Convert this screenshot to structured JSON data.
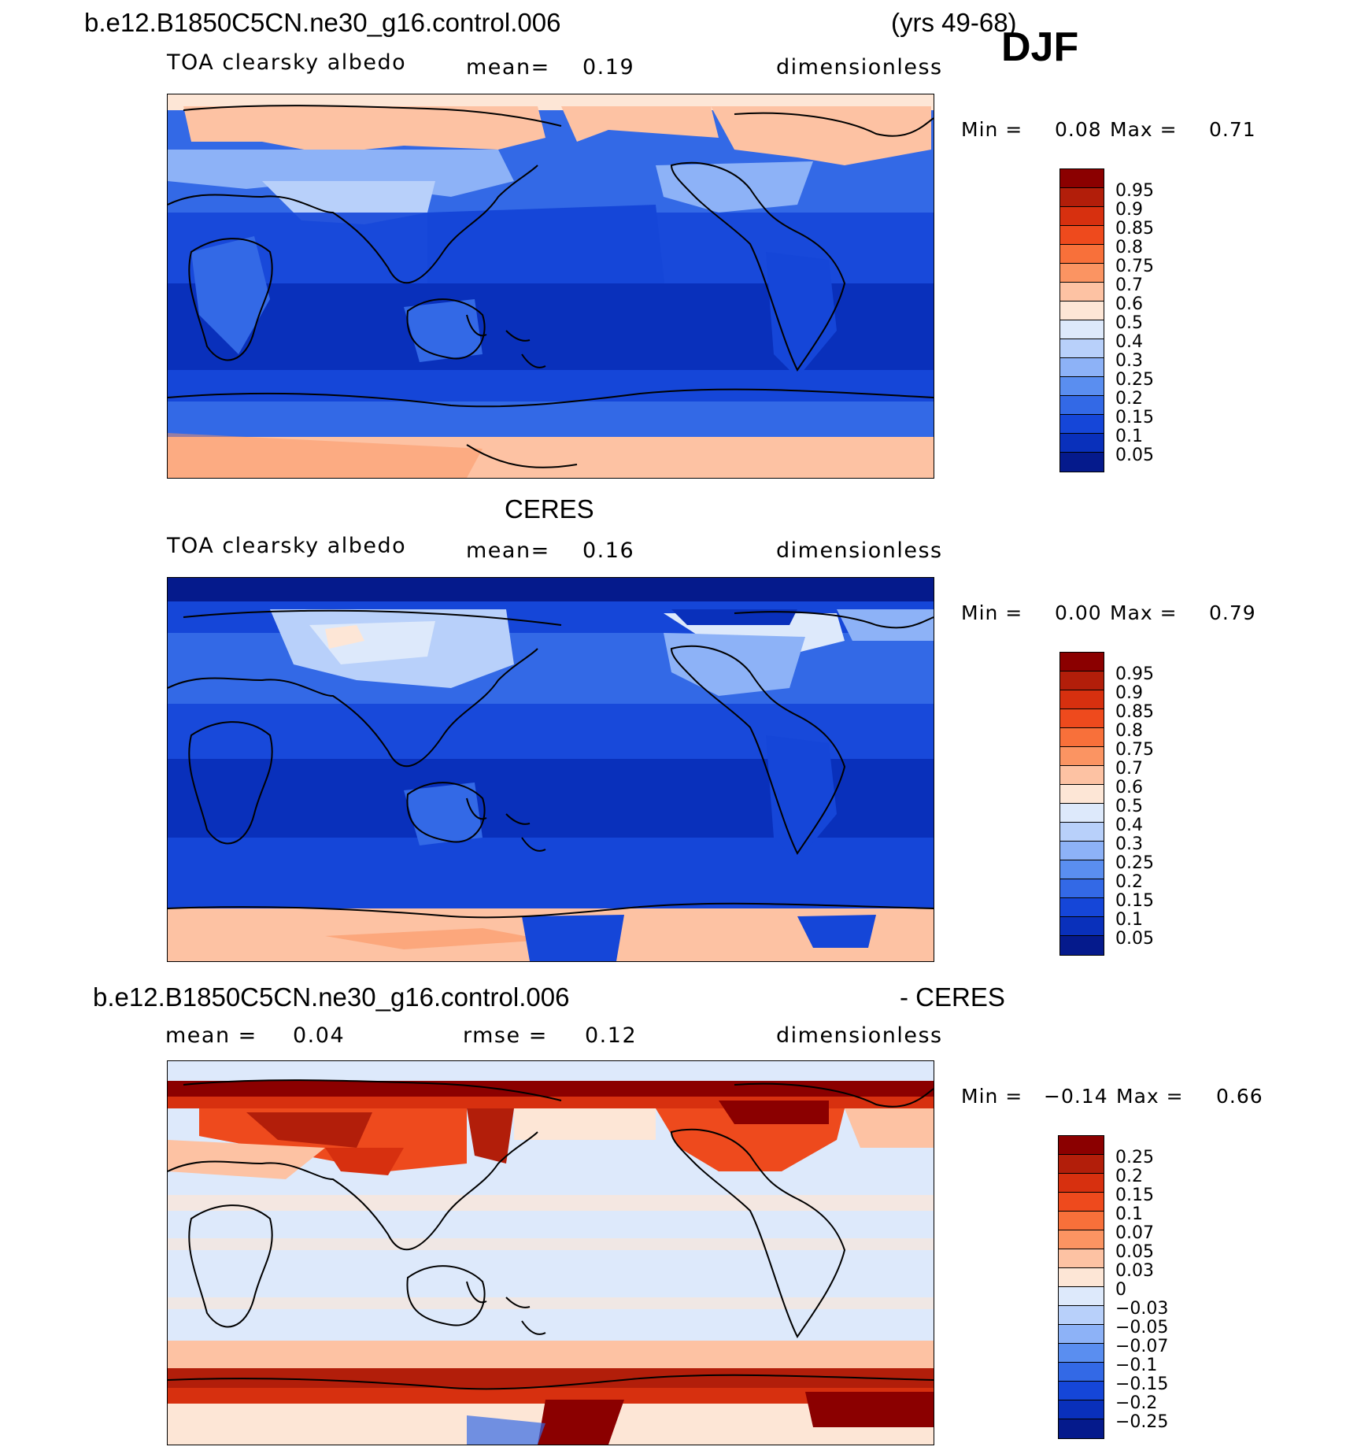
{
  "header": {
    "case_name": "b.e12.B1850C5CN.ne30_g16.control.006",
    "years": "(yrs 49-68)",
    "season": "DJF"
  },
  "panels": [
    {
      "title": "",
      "variable": "TOA clearsky albedo",
      "mean_label": "mean=",
      "mean_value": "0.19",
      "units": "dimensionless",
      "min_label": "Min =",
      "min_value": "0.08",
      "max_label": "Max =",
      "max_value": "0.71",
      "colorbar": {
        "labels": [
          "0.95",
          "0.9",
          "0.85",
          "0.8",
          "0.75",
          "0.7",
          "0.6",
          "0.5",
          "0.4",
          "0.3",
          "0.25",
          "0.2",
          "0.15",
          "0.1",
          "0.05"
        ],
        "colors": [
          "#8b0000",
          "#b21e0a",
          "#d7300f",
          "#ee4a1d",
          "#f8703a",
          "#fb9462",
          "#fdc2a3",
          "#fde6d6",
          "#dde9fb",
          "#b8d0fa",
          "#8db2f7",
          "#5a8ef0",
          "#3369e6",
          "#1546d8",
          "#0930bb",
          "#051a8c"
        ]
      }
    },
    {
      "title": "CERES",
      "variable": "TOA clearsky albedo",
      "mean_label": "mean=",
      "mean_value": "0.16",
      "units": "dimensionless",
      "min_label": "Min =",
      "min_value": "0.00",
      "max_label": "Max =",
      "max_value": "0.79",
      "colorbar": {
        "labels": [
          "0.95",
          "0.9",
          "0.85",
          "0.8",
          "0.75",
          "0.7",
          "0.6",
          "0.5",
          "0.4",
          "0.3",
          "0.25",
          "0.2",
          "0.15",
          "0.1",
          "0.05"
        ],
        "colors": [
          "#8b0000",
          "#b21e0a",
          "#d7300f",
          "#ee4a1d",
          "#f8703a",
          "#fb9462",
          "#fdc2a3",
          "#fde6d6",
          "#dde9fb",
          "#b8d0fa",
          "#8db2f7",
          "#5a8ef0",
          "#3369e6",
          "#1546d8",
          "#0930bb",
          "#051a8c"
        ]
      }
    },
    {
      "title_left": "b.e12.B1850C5CN.ne30_g16.control.006",
      "title_right": "- CERES",
      "mean_label": "mean =",
      "mean_value": "0.04",
      "rmse_label": "rmse =",
      "rmse_value": "0.12",
      "units": "dimensionless",
      "min_label": "Min =",
      "min_value": "−0.14",
      "max_label": "Max =",
      "max_value": "0.66",
      "colorbar": {
        "labels": [
          "0.25",
          "0.2",
          "0.15",
          "0.1",
          "0.07",
          "0.05",
          "0.03",
          "0",
          "−0.03",
          "−0.05",
          "−0.07",
          "−0.1",
          "−0.15",
          "−0.2",
          "−0.25"
        ],
        "colors": [
          "#8b0000",
          "#b21e0a",
          "#d7300f",
          "#ee4a1d",
          "#f8703a",
          "#fb9462",
          "#fdc2a3",
          "#fde6d6",
          "#dde9fb",
          "#b8d0fa",
          "#8db2f7",
          "#5a8ef0",
          "#3369e6",
          "#1546d8",
          "#0930bb",
          "#051a8c"
        ]
      }
    }
  ]
}
